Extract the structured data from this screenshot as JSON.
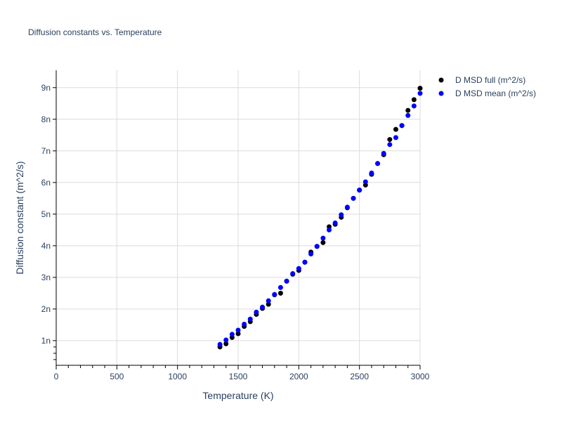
{
  "chart_data": {
    "type": "scatter",
    "title": "Diffusion constants vs. Temperature",
    "xlabel": "Temperature (K)",
    "ylabel": "Diffusion constant (m^2/s)",
    "xlim": [
      0,
      3000
    ],
    "ylim": [
      2.2e-10,
      9.55e-09
    ],
    "grid": true,
    "legend_position": "top-right-outside",
    "x_ticks": [
      0,
      500,
      1000,
      1500,
      2000,
      2500,
      3000
    ],
    "x_tick_labels": [
      "0",
      "500",
      "1000",
      "1500",
      "2000",
      "2500",
      "3000"
    ],
    "y_ticks": [
      1e-09,
      2e-09,
      3e-09,
      4e-09,
      5e-09,
      6e-09,
      7e-09,
      8e-09,
      9e-09
    ],
    "y_tick_labels": [
      "1n",
      "2n",
      "3n",
      "4n",
      "5n",
      "6n",
      "7n",
      "8n",
      "9n"
    ],
    "x": [
      1350,
      1400,
      1450,
      1500,
      1550,
      1600,
      1650,
      1700,
      1750,
      1800,
      1850,
      1900,
      1950,
      2000,
      2050,
      2100,
      2150,
      2200,
      2250,
      2300,
      2350,
      2400,
      2450,
      2500,
      2550,
      2600,
      2650,
      2700,
      2750,
      2800,
      2850,
      2900,
      2950,
      3000
    ],
    "series": [
      {
        "name": "D MSD full (m^2/s)",
        "color": "#000000",
        "values_n": [
          0.8,
          0.9,
          1.1,
          1.22,
          1.45,
          1.6,
          1.83,
          2.02,
          2.15,
          2.45,
          2.5,
          2.88,
          3.1,
          3.22,
          3.48,
          3.8,
          3.98,
          4.1,
          4.6,
          4.68,
          4.9,
          5.2,
          5.5,
          5.76,
          5.92,
          6.26,
          6.6,
          6.88,
          7.36,
          7.68,
          7.8,
          8.28,
          8.62,
          8.98
        ]
      },
      {
        "name": "D MSD mean (m^2/s)",
        "color": "#0000ff",
        "values_n": [
          0.88,
          1.02,
          1.2,
          1.33,
          1.52,
          1.68,
          1.9,
          2.06,
          2.26,
          2.46,
          2.68,
          2.88,
          3.12,
          3.28,
          3.48,
          3.74,
          3.98,
          4.24,
          4.5,
          4.72,
          4.98,
          5.22,
          5.5,
          5.76,
          6.02,
          6.3,
          6.6,
          6.92,
          7.2,
          7.42,
          7.8,
          8.12,
          8.42,
          8.82
        ]
      }
    ]
  }
}
